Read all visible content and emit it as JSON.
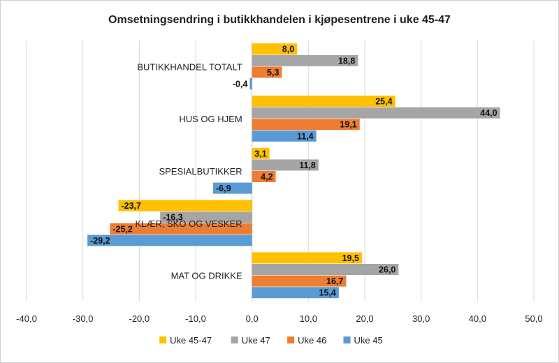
{
  "chart_data": {
    "type": "bar",
    "orientation": "horizontal",
    "title": "Omsetningsendring i butikkhandelen i kjøpesentrene i uke 45-47",
    "categories": [
      "BUTIKKHANDEL TOTALT",
      "HUS OG HJEM",
      "SPESIALBUTIKKER",
      "KLÆR, SKO OG VESKER",
      "MAT OG DRIKKE"
    ],
    "series": [
      {
        "name": "Uke 45-47",
        "color": "#ffc000",
        "values": [
          8.0,
          25.4,
          3.1,
          -23.7,
          19.5
        ],
        "labels": [
          "8,0",
          "25,4",
          "3,1",
          "-23,7",
          "19,5"
        ]
      },
      {
        "name": "Uke 47",
        "color": "#a5a5a5",
        "values": [
          18.8,
          44.0,
          11.8,
          -16.3,
          26.0
        ],
        "labels": [
          "18,8",
          "44,0",
          "11,8",
          "-16,3",
          "26,0"
        ]
      },
      {
        "name": "Uke 46",
        "color": "#ed7d31",
        "values": [
          5.3,
          19.1,
          4.2,
          -25.2,
          16.7
        ],
        "labels": [
          "5,3",
          "19,1",
          "4,2",
          "-25,2",
          "16,7"
        ]
      },
      {
        "name": "Uke 45",
        "color": "#5b9bd5",
        "values": [
          -0.4,
          11.4,
          -6.9,
          -29.2,
          15.4
        ],
        "labels": [
          "-0,4",
          "11,4",
          "-6,9",
          "-29,2",
          "15,4"
        ]
      }
    ],
    "xlim": [
      -40,
      50
    ],
    "xticks": [
      -40,
      -30,
      -20,
      -10,
      0,
      10,
      20,
      30,
      40,
      50
    ],
    "xtick_labels": [
      "-40,0",
      "-30,0",
      "-20,0",
      "-10,0",
      "0,0",
      "10,0",
      "20,0",
      "30,0",
      "40,0",
      "50,0"
    ],
    "grid": "vertical",
    "legend_position": "bottom"
  }
}
